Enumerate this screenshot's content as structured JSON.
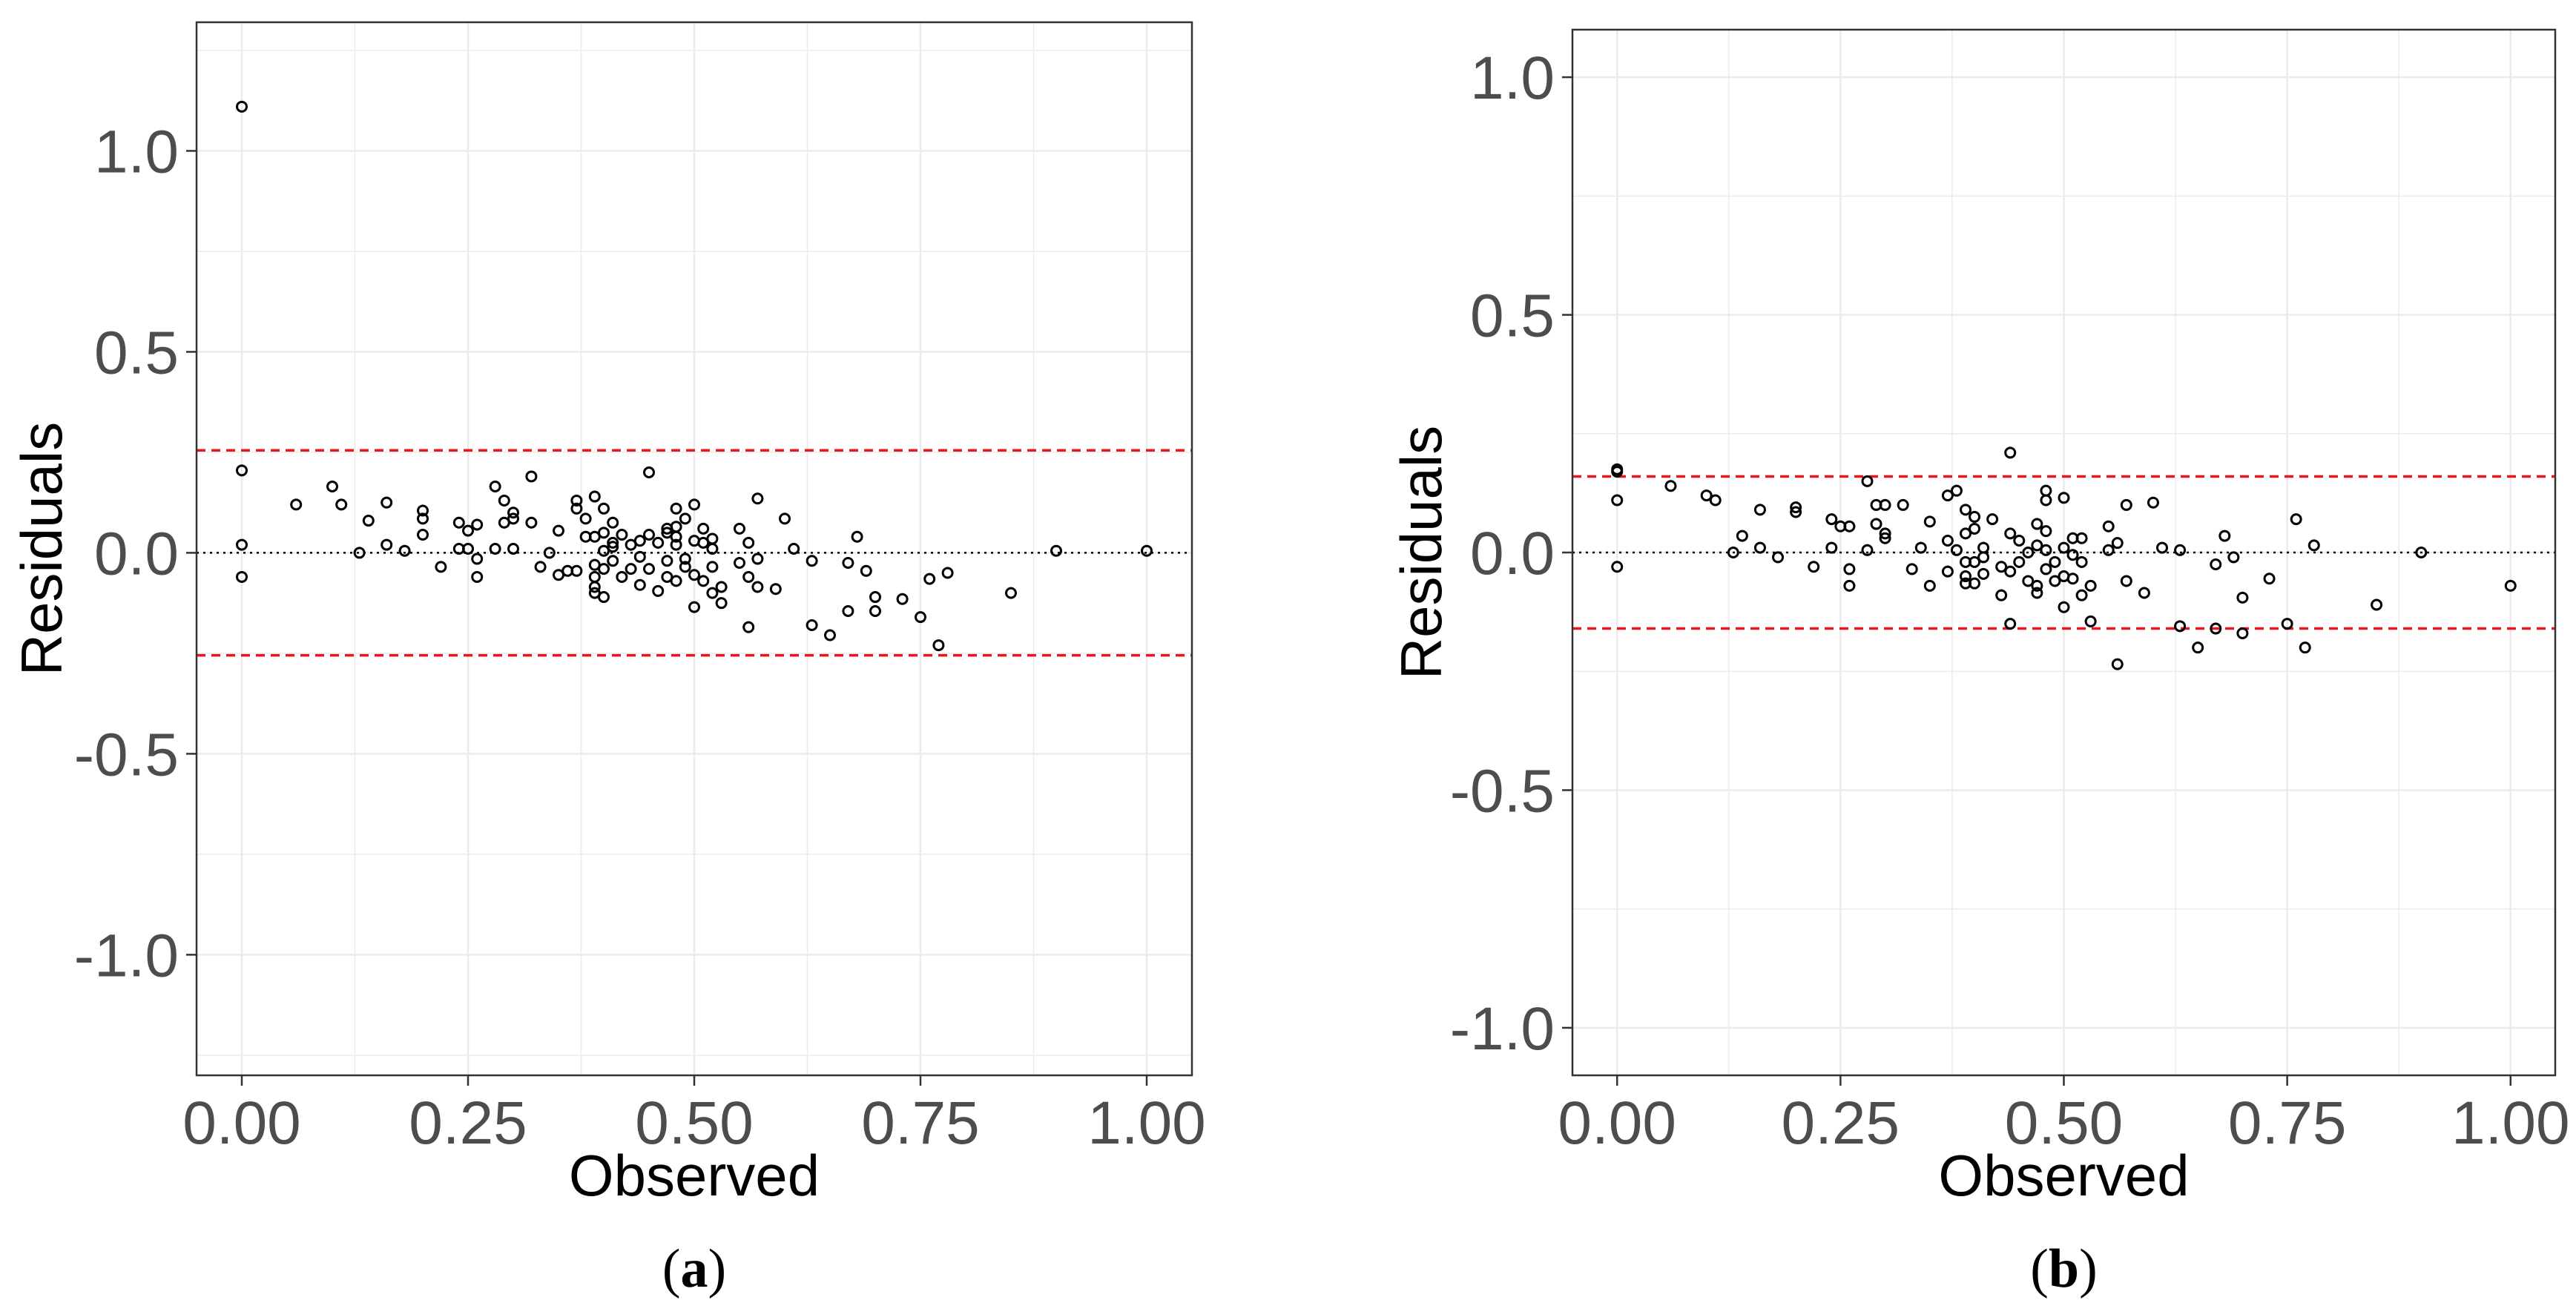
{
  "colors": {
    "background": "#ffffff",
    "grid": "#ebebeb",
    "border": "#333333",
    "tick_text": "#4d4d4d",
    "points": "#000000",
    "zero_line": "#000000",
    "limit_line": "#e8171d"
  },
  "chart_data": [
    {
      "panel": "a",
      "label_open": "(",
      "label_letter": "a",
      "label_close": ")",
      "type": "scatter",
      "xlabel": "Observed",
      "ylabel": "Residuals",
      "xlim": [
        -0.05,
        1.05
      ],
      "ylim": [
        -1.3,
        1.32
      ],
      "xticks": [
        0.0,
        0.25,
        0.5,
        0.75,
        1.0
      ],
      "xtick_labels": [
        "0.00",
        "0.25",
        "0.50",
        "0.75",
        "1.00"
      ],
      "yticks": [
        -1.0,
        -0.5,
        0.0,
        0.5,
        1.0
      ],
      "ytick_labels": [
        "-1.0",
        "-0.5",
        "0.0",
        "0.5",
        "1.0"
      ],
      "minor_yticks": [
        -1.25,
        -0.75,
        -0.25,
        0.25,
        0.75,
        1.25
      ],
      "minor_xticks": [
        0.125,
        0.375,
        0.625,
        0.875
      ],
      "grid": true,
      "zero_line": 0.0,
      "limits": [
        0.255,
        -0.255
      ],
      "points": [
        [
          0.0,
          1.11
        ],
        [
          0.0,
          0.205
        ],
        [
          0.0,
          0.02
        ],
        [
          0.0,
          -0.06
        ],
        [
          0.06,
          0.12
        ],
        [
          0.1,
          0.165
        ],
        [
          0.11,
          0.12
        ],
        [
          0.13,
          0.0
        ],
        [
          0.14,
          0.08
        ],
        [
          0.16,
          0.125
        ],
        [
          0.16,
          0.02
        ],
        [
          0.18,
          0.005
        ],
        [
          0.2,
          0.105
        ],
        [
          0.2,
          0.085
        ],
        [
          0.2,
          0.045
        ],
        [
          0.22,
          -0.035
        ],
        [
          0.24,
          0.075
        ],
        [
          0.24,
          0.01
        ],
        [
          0.25,
          0.055
        ],
        [
          0.25,
          0.01
        ],
        [
          0.26,
          0.07
        ],
        [
          0.26,
          -0.015
        ],
        [
          0.26,
          -0.06
        ],
        [
          0.28,
          0.165
        ],
        [
          0.28,
          0.01
        ],
        [
          0.29,
          0.13
        ],
        [
          0.29,
          0.075
        ],
        [
          0.3,
          0.1
        ],
        [
          0.3,
          0.085
        ],
        [
          0.3,
          0.01
        ],
        [
          0.32,
          0.19
        ],
        [
          0.32,
          0.075
        ],
        [
          0.33,
          -0.035
        ],
        [
          0.34,
          0.0
        ],
        [
          0.35,
          0.055
        ],
        [
          0.35,
          -0.055
        ],
        [
          0.36,
          -0.045
        ],
        [
          0.37,
          0.13
        ],
        [
          0.37,
          0.11
        ],
        [
          0.37,
          -0.045
        ],
        [
          0.38,
          0.085
        ],
        [
          0.38,
          0.04
        ],
        [
          0.39,
          0.14
        ],
        [
          0.39,
          0.04
        ],
        [
          0.39,
          -0.03
        ],
        [
          0.39,
          -0.06
        ],
        [
          0.39,
          -0.085
        ],
        [
          0.39,
          -0.1
        ],
        [
          0.4,
          0.11
        ],
        [
          0.4,
          0.05
        ],
        [
          0.4,
          0.005
        ],
        [
          0.4,
          -0.04
        ],
        [
          0.4,
          -0.11
        ],
        [
          0.41,
          0.075
        ],
        [
          0.41,
          0.025
        ],
        [
          0.41,
          0.015
        ],
        [
          0.41,
          -0.02
        ],
        [
          0.42,
          0.045
        ],
        [
          0.42,
          -0.06
        ],
        [
          0.43,
          0.02
        ],
        [
          0.43,
          -0.04
        ],
        [
          0.44,
          0.03
        ],
        [
          0.44,
          -0.01
        ],
        [
          0.44,
          -0.08
        ],
        [
          0.45,
          0.2
        ],
        [
          0.45,
          0.045
        ],
        [
          0.45,
          -0.04
        ],
        [
          0.46,
          0.025
        ],
        [
          0.46,
          -0.095
        ],
        [
          0.47,
          0.06
        ],
        [
          0.47,
          0.05
        ],
        [
          0.47,
          -0.02
        ],
        [
          0.47,
          -0.06
        ],
        [
          0.48,
          0.11
        ],
        [
          0.48,
          0.065
        ],
        [
          0.48,
          0.04
        ],
        [
          0.48,
          0.02
        ],
        [
          0.48,
          -0.07
        ],
        [
          0.49,
          0.085
        ],
        [
          0.49,
          -0.015
        ],
        [
          0.49,
          -0.035
        ],
        [
          0.5,
          0.12
        ],
        [
          0.5,
          0.03
        ],
        [
          0.5,
          -0.055
        ],
        [
          0.5,
          -0.135
        ],
        [
          0.51,
          0.06
        ],
        [
          0.51,
          0.025
        ],
        [
          0.51,
          -0.07
        ],
        [
          0.52,
          0.035
        ],
        [
          0.52,
          0.01
        ],
        [
          0.52,
          -0.035
        ],
        [
          0.52,
          -0.1
        ],
        [
          0.53,
          -0.085
        ],
        [
          0.53,
          -0.125
        ],
        [
          0.55,
          0.06
        ],
        [
          0.55,
          -0.025
        ],
        [
          0.56,
          0.025
        ],
        [
          0.56,
          -0.06
        ],
        [
          0.56,
          -0.185
        ],
        [
          0.57,
          0.135
        ],
        [
          0.57,
          -0.015
        ],
        [
          0.57,
          -0.085
        ],
        [
          0.59,
          -0.09
        ],
        [
          0.6,
          0.085
        ],
        [
          0.61,
          0.01
        ],
        [
          0.63,
          -0.02
        ],
        [
          0.63,
          -0.18
        ],
        [
          0.65,
          -0.205
        ],
        [
          0.67,
          -0.025
        ],
        [
          0.67,
          -0.145
        ],
        [
          0.68,
          0.04
        ],
        [
          0.69,
          -0.045
        ],
        [
          0.7,
          -0.11
        ],
        [
          0.7,
          -0.145
        ],
        [
          0.73,
          -0.115
        ],
        [
          0.75,
          -0.16
        ],
        [
          0.76,
          -0.065
        ],
        [
          0.77,
          -0.23
        ],
        [
          0.78,
          -0.05
        ],
        [
          0.85,
          -0.1
        ],
        [
          0.9,
          0.005
        ],
        [
          1.0,
          0.005
        ]
      ]
    },
    {
      "panel": "b",
      "label_open": "(",
      "label_letter": "b",
      "label_close": ")",
      "type": "scatter",
      "xlabel": "Observed",
      "ylabel": "Residuals",
      "xlim": [
        -0.05,
        1.05
      ],
      "ylim": [
        -1.1,
        1.1
      ],
      "xticks": [
        0.0,
        0.25,
        0.5,
        0.75,
        1.0
      ],
      "xtick_labels": [
        "0.00",
        "0.25",
        "0.50",
        "0.75",
        "1.00"
      ],
      "yticks": [
        -1.0,
        -0.5,
        0.0,
        0.5,
        1.0
      ],
      "ytick_labels": [
        "-1.0",
        "-0.5",
        "0.0",
        "0.5",
        "1.0"
      ],
      "minor_yticks": [
        -0.75,
        -0.25,
        0.25,
        0.75
      ],
      "minor_xticks": [
        0.125,
        0.375,
        0.625,
        0.875
      ],
      "grid": true,
      "zero_line": 0.0,
      "limits": [
        0.16,
        -0.16
      ],
      "points": [
        [
          0.0,
          0.175
        ],
        [
          0.0,
          0.17
        ],
        [
          0.0,
          0.11
        ],
        [
          0.0,
          -0.03
        ],
        [
          0.06,
          0.14
        ],
        [
          0.1,
          0.12
        ],
        [
          0.11,
          0.11
        ],
        [
          0.13,
          0.0
        ],
        [
          0.14,
          0.035
        ],
        [
          0.16,
          0.09
        ],
        [
          0.16,
          0.01
        ],
        [
          0.18,
          -0.01
        ],
        [
          0.2,
          0.095
        ],
        [
          0.2,
          0.085
        ],
        [
          0.22,
          -0.03
        ],
        [
          0.24,
          0.07
        ],
        [
          0.24,
          0.01
        ],
        [
          0.25,
          0.055
        ],
        [
          0.26,
          0.055
        ],
        [
          0.26,
          -0.035
        ],
        [
          0.26,
          -0.07
        ],
        [
          0.28,
          0.15
        ],
        [
          0.28,
          0.005
        ],
        [
          0.29,
          0.1
        ],
        [
          0.29,
          0.06
        ],
        [
          0.3,
          0.1
        ],
        [
          0.3,
          0.04
        ],
        [
          0.3,
          0.03
        ],
        [
          0.32,
          0.1
        ],
        [
          0.33,
          -0.035
        ],
        [
          0.34,
          0.01
        ],
        [
          0.35,
          0.065
        ],
        [
          0.35,
          -0.07
        ],
        [
          0.37,
          0.12
        ],
        [
          0.37,
          0.025
        ],
        [
          0.37,
          -0.04
        ],
        [
          0.38,
          0.13
        ],
        [
          0.38,
          0.005
        ],
        [
          0.39,
          0.09
        ],
        [
          0.39,
          0.04
        ],
        [
          0.39,
          -0.02
        ],
        [
          0.39,
          -0.05
        ],
        [
          0.39,
          -0.065
        ],
        [
          0.4,
          0.075
        ],
        [
          0.4,
          0.05
        ],
        [
          0.4,
          -0.02
        ],
        [
          0.4,
          -0.065
        ],
        [
          0.41,
          0.01
        ],
        [
          0.41,
          -0.01
        ],
        [
          0.41,
          -0.045
        ],
        [
          0.42,
          0.07
        ],
        [
          0.43,
          -0.03
        ],
        [
          0.43,
          -0.09
        ],
        [
          0.44,
          0.21
        ],
        [
          0.44,
          0.04
        ],
        [
          0.44,
          -0.04
        ],
        [
          0.44,
          -0.15
        ],
        [
          0.45,
          0.025
        ],
        [
          0.45,
          -0.02
        ],
        [
          0.46,
          -0.06
        ],
        [
          0.46,
          0.0
        ],
        [
          0.47,
          0.06
        ],
        [
          0.47,
          0.015
        ],
        [
          0.47,
          -0.07
        ],
        [
          0.47,
          -0.085
        ],
        [
          0.48,
          0.13
        ],
        [
          0.48,
          0.11
        ],
        [
          0.48,
          0.045
        ],
        [
          0.48,
          0.005
        ],
        [
          0.48,
          -0.035
        ],
        [
          0.49,
          -0.02
        ],
        [
          0.49,
          -0.06
        ],
        [
          0.5,
          0.115
        ],
        [
          0.5,
          0.01
        ],
        [
          0.5,
          -0.05
        ],
        [
          0.5,
          -0.115
        ],
        [
          0.51,
          0.03
        ],
        [
          0.51,
          -0.005
        ],
        [
          0.51,
          -0.055
        ],
        [
          0.52,
          0.03
        ],
        [
          0.52,
          -0.02
        ],
        [
          0.52,
          -0.09
        ],
        [
          0.53,
          -0.07
        ],
        [
          0.53,
          -0.145
        ],
        [
          0.55,
          0.055
        ],
        [
          0.55,
          0.005
        ],
        [
          0.56,
          0.02
        ],
        [
          0.56,
          -0.235
        ],
        [
          0.57,
          0.1
        ],
        [
          0.57,
          -0.06
        ],
        [
          0.59,
          -0.085
        ],
        [
          0.6,
          0.105
        ],
        [
          0.61,
          0.01
        ],
        [
          0.63,
          0.005
        ],
        [
          0.63,
          -0.155
        ],
        [
          0.65,
          -0.2
        ],
        [
          0.67,
          -0.025
        ],
        [
          0.67,
          -0.16
        ],
        [
          0.68,
          0.035
        ],
        [
          0.69,
          -0.01
        ],
        [
          0.7,
          -0.095
        ],
        [
          0.7,
          -0.17
        ],
        [
          0.73,
          -0.055
        ],
        [
          0.75,
          -0.15
        ],
        [
          0.76,
          0.07
        ],
        [
          0.77,
          -0.2
        ],
        [
          0.78,
          0.015
        ],
        [
          0.85,
          -0.11
        ],
        [
          0.9,
          0.0
        ],
        [
          1.0,
          -0.07
        ]
      ]
    }
  ]
}
